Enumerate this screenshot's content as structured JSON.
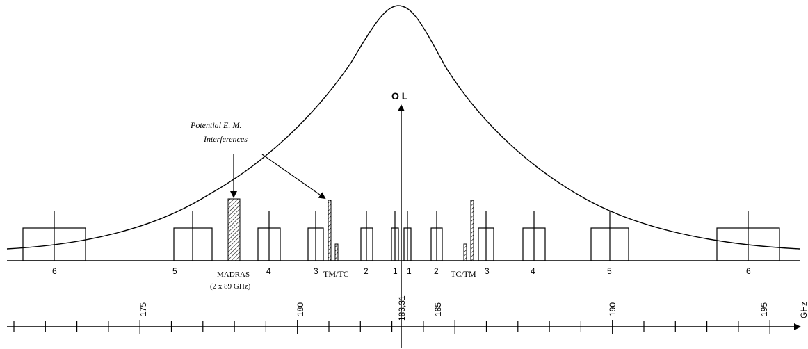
{
  "oscillator": {
    "label": "O L"
  },
  "annotation": {
    "line1": "Potential E. M.",
    "line2": "Interferences"
  },
  "madras": {
    "line1": "MADRAS",
    "line2": "(2 x 89 GHz)"
  },
  "tm_tc_left": "TM/TC",
  "tc_tm_right": "TC/TM",
  "channels": [
    {
      "label": "6"
    },
    {
      "label": "5"
    },
    {
      "label": "4"
    },
    {
      "label": "3"
    },
    {
      "label": "2"
    },
    {
      "label": "1"
    },
    {
      "label": "1"
    },
    {
      "label": "2"
    },
    {
      "label": "3"
    },
    {
      "label": "4"
    },
    {
      "label": "5"
    },
    {
      "label": "6"
    }
  ],
  "axis": {
    "unit": "GHz",
    "ticks": [
      "175",
      "180",
      "183,31",
      "185",
      "190",
      "195"
    ]
  },
  "colors": {
    "line": "#000000",
    "hatch": "#000000",
    "background": "#ffffff"
  }
}
